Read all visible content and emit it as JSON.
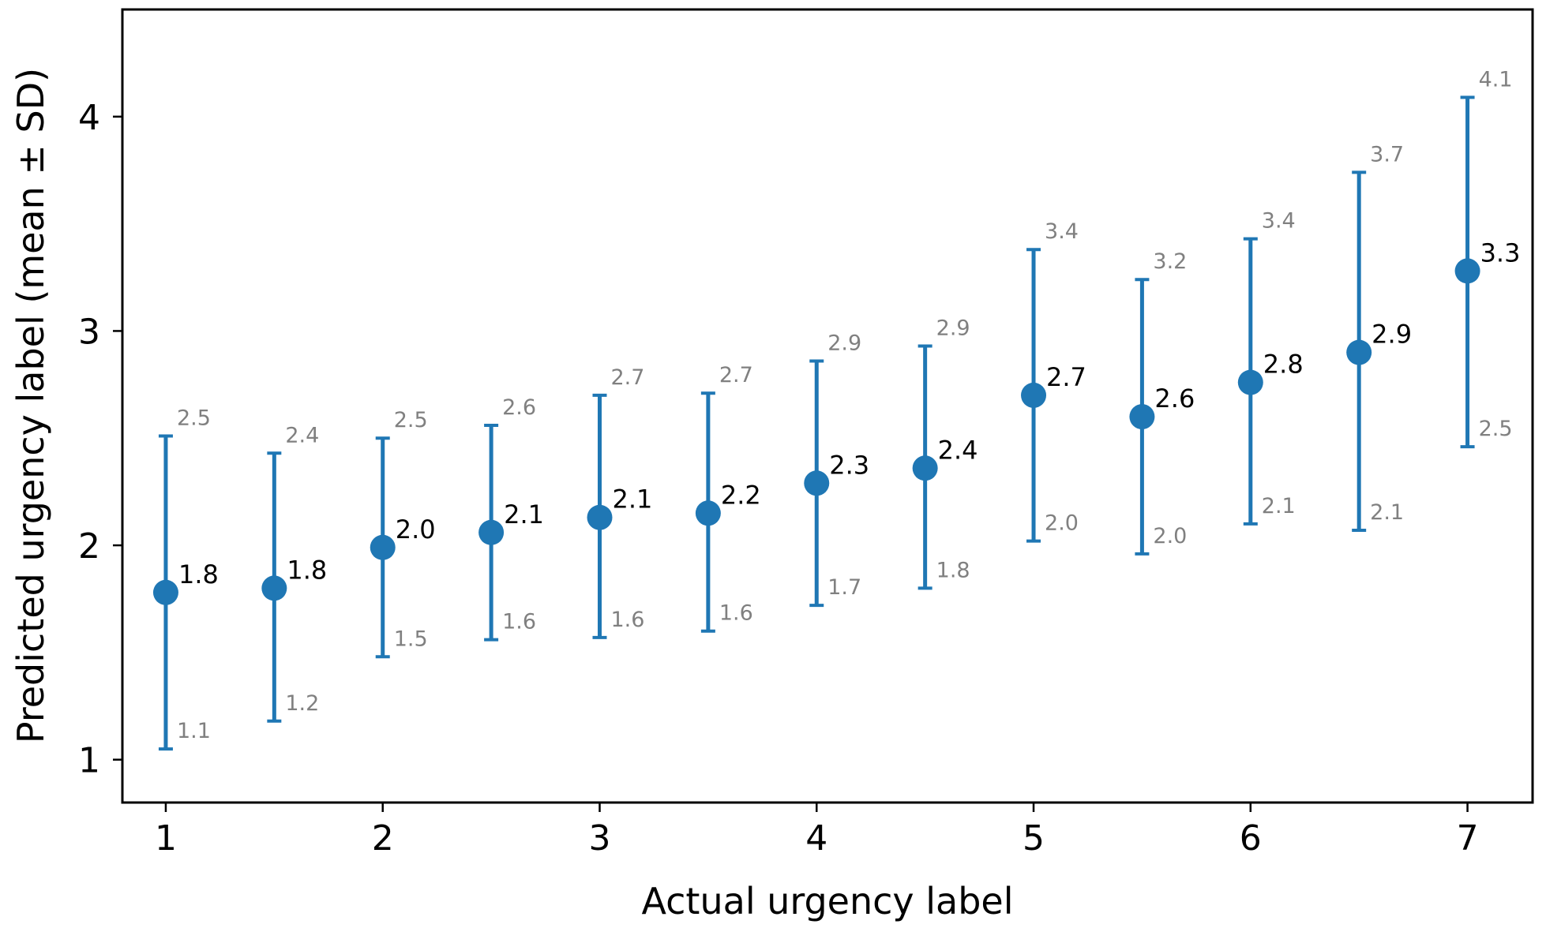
{
  "chart_data": {
    "type": "errorbar",
    "title": "",
    "xlabel": "Actual urgency label",
    "ylabel": "Predicted urgency label (mean ± SD)",
    "xlim": [
      0.8,
      7.3
    ],
    "ylim": [
      0.8,
      4.5
    ],
    "xticks": [
      1,
      2,
      3,
      4,
      5,
      6,
      7
    ],
    "yticks": [
      1,
      2,
      3,
      4
    ],
    "x_tick_labels": [
      "1",
      "2",
      "3",
      "4",
      "5",
      "6",
      "7"
    ],
    "y_tick_labels": [
      "1",
      "2",
      "3",
      "4"
    ],
    "series_color": "#1f77b4",
    "bound_label_color": "#808080",
    "points": [
      {
        "x": 1.0,
        "mean": 1.78,
        "lower": 1.05,
        "upper": 2.51,
        "mean_label": "1.8",
        "lower_label": "1.1",
        "upper_label": "2.5"
      },
      {
        "x": 1.5,
        "mean": 1.8,
        "lower": 1.18,
        "upper": 2.43,
        "mean_label": "1.8",
        "lower_label": "1.2",
        "upper_label": "2.4"
      },
      {
        "x": 2.0,
        "mean": 1.99,
        "lower": 1.48,
        "upper": 2.5,
        "mean_label": "2.0",
        "lower_label": "1.5",
        "upper_label": "2.5"
      },
      {
        "x": 2.5,
        "mean": 2.06,
        "lower": 1.56,
        "upper": 2.56,
        "mean_label": "2.1",
        "lower_label": "1.6",
        "upper_label": "2.6"
      },
      {
        "x": 3.0,
        "mean": 2.13,
        "lower": 1.57,
        "upper": 2.7,
        "mean_label": "2.1",
        "lower_label": "1.6",
        "upper_label": "2.7"
      },
      {
        "x": 3.5,
        "mean": 2.15,
        "lower": 1.6,
        "upper": 2.71,
        "mean_label": "2.2",
        "lower_label": "1.6",
        "upper_label": "2.7"
      },
      {
        "x": 4.0,
        "mean": 2.29,
        "lower": 1.72,
        "upper": 2.86,
        "mean_label": "2.3",
        "lower_label": "1.7",
        "upper_label": "2.9"
      },
      {
        "x": 4.5,
        "mean": 2.36,
        "lower": 1.8,
        "upper": 2.93,
        "mean_label": "2.4",
        "lower_label": "1.8",
        "upper_label": "2.9"
      },
      {
        "x": 5.0,
        "mean": 2.7,
        "lower": 2.02,
        "upper": 3.38,
        "mean_label": "2.7",
        "lower_label": "2.0",
        "upper_label": "3.4"
      },
      {
        "x": 5.5,
        "mean": 2.6,
        "lower": 1.96,
        "upper": 3.24,
        "mean_label": "2.6",
        "lower_label": "2.0",
        "upper_label": "3.2"
      },
      {
        "x": 6.0,
        "mean": 2.76,
        "lower": 2.1,
        "upper": 3.43,
        "mean_label": "2.8",
        "lower_label": "2.1",
        "upper_label": "3.4"
      },
      {
        "x": 6.5,
        "mean": 2.9,
        "lower": 2.07,
        "upper": 3.74,
        "mean_label": "2.9",
        "lower_label": "2.1",
        "upper_label": "3.7"
      },
      {
        "x": 7.0,
        "mean": 3.28,
        "lower": 2.46,
        "upper": 4.09,
        "mean_label": "3.3",
        "lower_label": "2.5",
        "upper_label": "4.1"
      }
    ]
  }
}
